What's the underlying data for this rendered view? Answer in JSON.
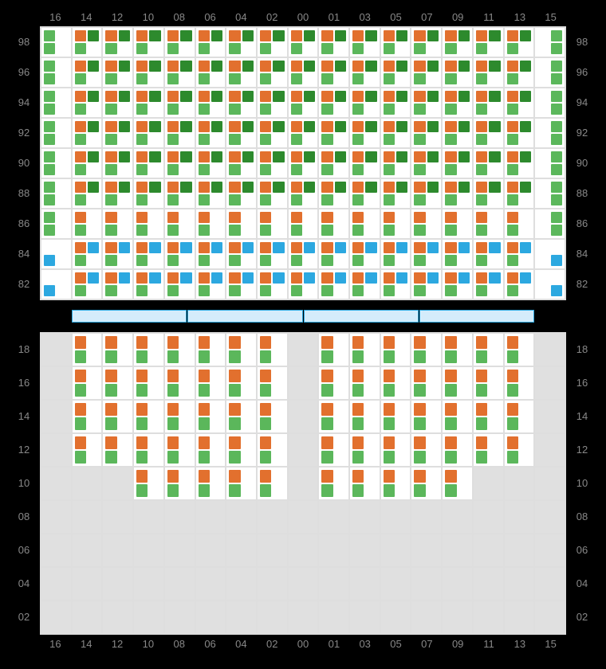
{
  "colors": {
    "orange": "#e2702e",
    "darkgreen": "#2d8a2d",
    "green": "#5bb75b",
    "blue": "#2ca8e0",
    "lightblue": "#d4ecfb",
    "cell_border": "#dedede",
    "inactive": "#e0e0e0",
    "label": "#888888",
    "bg": "#000000"
  },
  "column_labels": [
    "16",
    "14",
    "12",
    "10",
    "08",
    "06",
    "04",
    "02",
    "00",
    "01",
    "03",
    "05",
    "07",
    "09",
    "11",
    "13",
    "15"
  ],
  "top_section": {
    "row_labels": [
      "98",
      "96",
      "94",
      "92",
      "90",
      "88",
      "86",
      "84",
      "82"
    ],
    "cols": 17,
    "rows": 9,
    "patterns": {
      "A": [
        "green",
        "empty",
        "green",
        "empty"
      ],
      "B": [
        "orange",
        "darkgreen",
        "green",
        "empty"
      ],
      "C": [
        "empty",
        "green",
        "empty",
        "green"
      ],
      "D": [
        "orange",
        "empty",
        "green",
        "empty"
      ],
      "E": [
        "orange",
        "blue",
        "green",
        "empty"
      ],
      "F": [
        "empty",
        "empty",
        "blue",
        "empty"
      ],
      "G": [
        "empty",
        "empty",
        "empty",
        "blue"
      ]
    },
    "layout": [
      [
        "A",
        "B",
        "B",
        "B",
        "B",
        "B",
        "B",
        "B",
        "B",
        "B",
        "B",
        "B",
        "B",
        "B",
        "B",
        "B",
        "C"
      ],
      [
        "A",
        "B",
        "B",
        "B",
        "B",
        "B",
        "B",
        "B",
        "B",
        "B",
        "B",
        "B",
        "B",
        "B",
        "B",
        "B",
        "C"
      ],
      [
        "A",
        "B",
        "B",
        "B",
        "B",
        "B",
        "B",
        "B",
        "B",
        "B",
        "B",
        "B",
        "B",
        "B",
        "B",
        "B",
        "C"
      ],
      [
        "A",
        "B",
        "B",
        "B",
        "B",
        "B",
        "B",
        "B",
        "B",
        "B",
        "B",
        "B",
        "B",
        "B",
        "B",
        "B",
        "C"
      ],
      [
        "A",
        "B",
        "B",
        "B",
        "B",
        "B",
        "B",
        "B",
        "B",
        "B",
        "B",
        "B",
        "B",
        "B",
        "B",
        "B",
        "C"
      ],
      [
        "A",
        "B",
        "B",
        "B",
        "B",
        "B",
        "B",
        "B",
        "B",
        "B",
        "B",
        "B",
        "B",
        "B",
        "B",
        "B",
        "C"
      ],
      [
        "A",
        "D",
        "D",
        "D",
        "D",
        "D",
        "D",
        "D",
        "D",
        "D",
        "D",
        "D",
        "D",
        "D",
        "D",
        "D",
        "C"
      ],
      [
        "F",
        "E",
        "E",
        "E",
        "E",
        "E",
        "E",
        "E",
        "E",
        "E",
        "E",
        "E",
        "E",
        "E",
        "E",
        "E",
        "G"
      ],
      [
        "F",
        "E",
        "E",
        "E",
        "E",
        "E",
        "E",
        "E",
        "E",
        "E",
        "E",
        "E",
        "E",
        "E",
        "E",
        "E",
        "G"
      ]
    ]
  },
  "separator_segments": 4,
  "bottom_section": {
    "row_labels": [
      "18",
      "16",
      "14",
      "12",
      "10",
      "08",
      "06",
      "04",
      "02"
    ],
    "cols": 17,
    "rows": 9,
    "patterns": {
      "D": [
        "orange",
        "empty",
        "green",
        "empty"
      ],
      "X": "inactive"
    },
    "layout": [
      [
        "X",
        "D",
        "D",
        "D",
        "D",
        "D",
        "D",
        "D",
        "X",
        "D",
        "D",
        "D",
        "D",
        "D",
        "D",
        "D",
        "X"
      ],
      [
        "X",
        "D",
        "D",
        "D",
        "D",
        "D",
        "D",
        "D",
        "X",
        "D",
        "D",
        "D",
        "D",
        "D",
        "D",
        "D",
        "X"
      ],
      [
        "X",
        "D",
        "D",
        "D",
        "D",
        "D",
        "D",
        "D",
        "X",
        "D",
        "D",
        "D",
        "D",
        "D",
        "D",
        "D",
        "X"
      ],
      [
        "X",
        "D",
        "D",
        "D",
        "D",
        "D",
        "D",
        "D",
        "X",
        "D",
        "D",
        "D",
        "D",
        "D",
        "D",
        "D",
        "X"
      ],
      [
        "X",
        "X",
        "X",
        "D",
        "D",
        "D",
        "D",
        "D",
        "X",
        "D",
        "D",
        "D",
        "D",
        "D",
        "X",
        "X",
        "X"
      ],
      [
        "X",
        "X",
        "X",
        "X",
        "X",
        "X",
        "X",
        "X",
        "X",
        "X",
        "X",
        "X",
        "X",
        "X",
        "X",
        "X",
        "X"
      ],
      [
        "X",
        "X",
        "X",
        "X",
        "X",
        "X",
        "X",
        "X",
        "X",
        "X",
        "X",
        "X",
        "X",
        "X",
        "X",
        "X",
        "X"
      ],
      [
        "X",
        "X",
        "X",
        "X",
        "X",
        "X",
        "X",
        "X",
        "X",
        "X",
        "X",
        "X",
        "X",
        "X",
        "X",
        "X",
        "X"
      ],
      [
        "X",
        "X",
        "X",
        "X",
        "X",
        "X",
        "X",
        "X",
        "X",
        "X",
        "X",
        "X",
        "X",
        "X",
        "X",
        "X",
        "X"
      ]
    ]
  }
}
